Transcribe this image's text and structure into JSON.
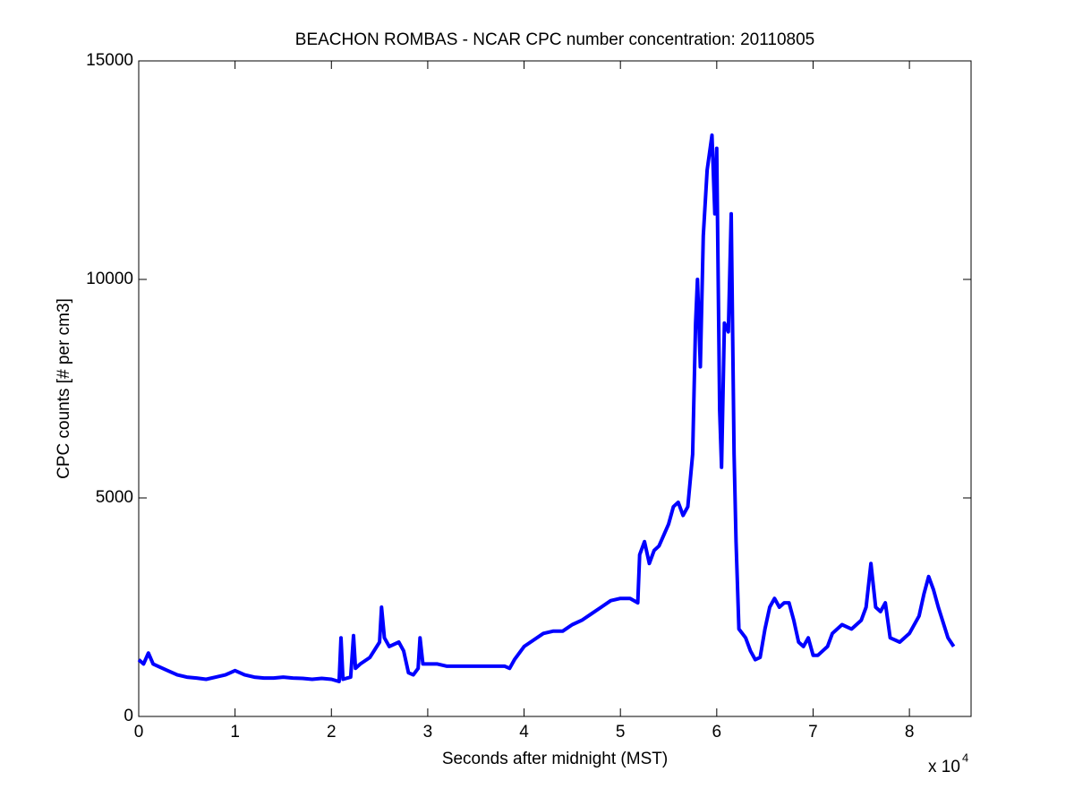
{
  "chart_data": {
    "type": "line",
    "title": "BEACHON ROMBAS - NCAR CPC number concentration: 20110805",
    "x_label": "Seconds after midnight (MST)",
    "y_label": "CPC counts [# per cm3]",
    "x_tick_multiplier": {
      "base": "x 10",
      "exponent": "4"
    },
    "xlim": [
      0,
      86400
    ],
    "xticks": [
      {
        "value": 0,
        "label": "0"
      },
      {
        "value": 10000,
        "label": "1"
      },
      {
        "value": 20000,
        "label": "2"
      },
      {
        "value": 30000,
        "label": "3"
      },
      {
        "value": 40000,
        "label": "4"
      },
      {
        "value": 50000,
        "label": "5"
      },
      {
        "value": 60000,
        "label": "6"
      },
      {
        "value": 70000,
        "label": "7"
      },
      {
        "value": 80000,
        "label": "8"
      }
    ],
    "ylim": [
      0,
      15000
    ],
    "yticks": [
      0,
      5000,
      10000,
      15000
    ],
    "grid": false,
    "x": [
      0,
      500,
      1000,
      1500,
      2000,
      3000,
      4000,
      5000,
      6000,
      7000,
      8000,
      9000,
      10000,
      11000,
      12000,
      13000,
      14000,
      15000,
      16000,
      17000,
      18000,
      19000,
      20000,
      20800,
      21000,
      21200,
      22000,
      22300,
      22500,
      23000,
      24000,
      25000,
      25200,
      25500,
      26000,
      27000,
      27500,
      28000,
      28500,
      29000,
      29200,
      29500,
      30000,
      31000,
      32000,
      33000,
      34000,
      35000,
      36000,
      37000,
      38000,
      38500,
      39000,
      40000,
      41000,
      42000,
      43000,
      44000,
      45000,
      46000,
      47000,
      48000,
      49000,
      50000,
      51000,
      51800,
      52000,
      52500,
      53000,
      53500,
      54000,
      55000,
      55500,
      56000,
      56500,
      57000,
      57500,
      57800,
      58000,
      58300,
      58600,
      59000,
      59500,
      59800,
      60000,
      60300,
      60500,
      60800,
      61200,
      61500,
      61800,
      62000,
      62300,
      63000,
      63500,
      64000,
      64500,
      65000,
      65500,
      66000,
      66500,
      67000,
      67500,
      68000,
      68500,
      69000,
      69500,
      70000,
      70500,
      71000,
      71500,
      72000,
      73000,
      74000,
      75000,
      75500,
      76000,
      76500,
      77000,
      77500,
      78000,
      79000,
      80000,
      81000,
      81500,
      82000,
      82500,
      83000,
      84000,
      84600
    ],
    "series": [
      {
        "name": "CPC counts",
        "color": "#0000ff",
        "values": [
          1300,
          1200,
          1450,
          1200,
          1150,
          1050,
          950,
          900,
          880,
          850,
          900,
          950,
          1050,
          950,
          900,
          880,
          880,
          900,
          880,
          870,
          850,
          870,
          850,
          800,
          1800,
          850,
          900,
          1850,
          1100,
          1200,
          1350,
          1700,
          2500,
          1800,
          1600,
          1700,
          1500,
          1000,
          950,
          1100,
          1800,
          1200,
          1200,
          1200,
          1150,
          1150,
          1150,
          1150,
          1150,
          1150,
          1150,
          1100,
          1300,
          1600,
          1750,
          1900,
          1950,
          1950,
          2100,
          2200,
          2350,
          2500,
          2650,
          2700,
          2700,
          2600,
          3700,
          4000,
          3500,
          3800,
          3900,
          4400,
          4800,
          4900,
          4600,
          4800,
          6000,
          9000,
          10000,
          8000,
          11000,
          12500,
          13300,
          11500,
          13000,
          7000,
          5700,
          9000,
          8800,
          11500,
          6000,
          4000,
          2000,
          1800,
          1500,
          1300,
          1350,
          2000,
          2500,
          2700,
          2500,
          2600,
          2600,
          2200,
          1700,
          1600,
          1800,
          1400,
          1400,
          1500,
          1600,
          1900,
          2100,
          2000,
          2200,
          2500,
          3500,
          2500,
          2400,
          2600,
          1800,
          1700,
          1900,
          2300,
          2800,
          3200,
          2900,
          2500,
          1800,
          1600
        ]
      }
    ]
  }
}
